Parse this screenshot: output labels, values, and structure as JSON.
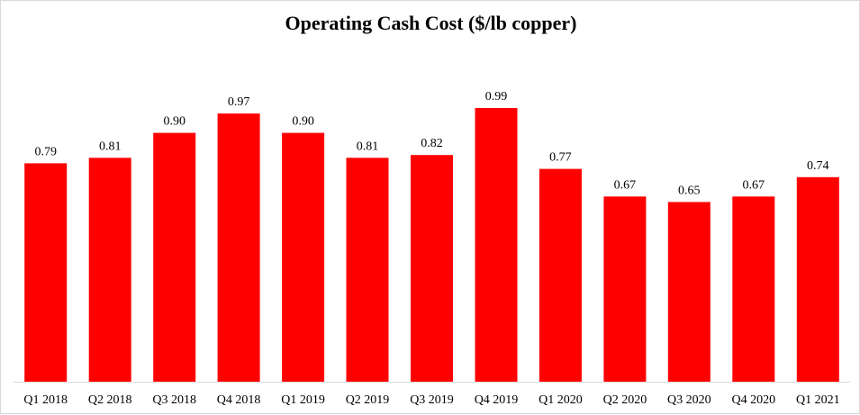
{
  "chart_data": {
    "type": "bar",
    "title": "Operating Cash Cost ($/lb copper)",
    "xlabel": "",
    "ylabel": "",
    "categories": [
      "Q1 2018",
      "Q2 2018",
      "Q3 2018",
      "Q4 2018",
      "Q1 2019",
      "Q2 2019",
      "Q3 2019",
      "Q4 2019",
      "Q1 2020",
      "Q2 2020",
      "Q3 2020",
      "Q4 2020",
      "Q1 2021"
    ],
    "values": [
      0.79,
      0.81,
      0.9,
      0.97,
      0.9,
      0.81,
      0.82,
      0.99,
      0.77,
      0.67,
      0.65,
      0.67,
      0.74
    ],
    "value_labels": [
      "0.79",
      "0.81",
      "0.90",
      "0.97",
      "0.90",
      "0.81",
      "0.82",
      "0.99",
      "0.77",
      "0.67",
      "0.65",
      "0.67",
      "0.74"
    ],
    "ylim": [
      0,
      1.0
    ],
    "grid": false,
    "legend": "none",
    "bar_color": "#ff0000"
  }
}
